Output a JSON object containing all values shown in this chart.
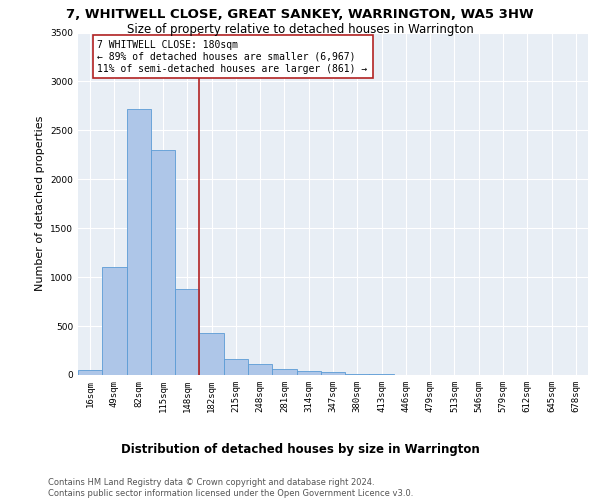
{
  "title": "7, WHITWELL CLOSE, GREAT SANKEY, WARRINGTON, WA5 3HW",
  "subtitle": "Size of property relative to detached houses in Warrington",
  "xlabel": "Distribution of detached houses by size in Warrington",
  "ylabel": "Number of detached properties",
  "categories": [
    "16sqm",
    "49sqm",
    "82sqm",
    "115sqm",
    "148sqm",
    "182sqm",
    "215sqm",
    "248sqm",
    "281sqm",
    "314sqm",
    "347sqm",
    "380sqm",
    "413sqm",
    "446sqm",
    "479sqm",
    "513sqm",
    "546sqm",
    "579sqm",
    "612sqm",
    "645sqm",
    "678sqm"
  ],
  "values": [
    50,
    1100,
    2720,
    2300,
    880,
    430,
    160,
    110,
    65,
    45,
    30,
    15,
    8,
    5,
    3,
    2,
    1,
    1,
    0,
    0,
    0
  ],
  "bar_color": "#aec6e8",
  "bar_edge_color": "#5b9bd5",
  "vline_position": 4.5,
  "vline_color": "#b22222",
  "annotation_line1": "7 WHITWELL CLOSE: 180sqm",
  "annotation_line2": "← 89% of detached houses are smaller (6,967)",
  "annotation_line3": "11% of semi-detached houses are larger (861) →",
  "annotation_box_color": "white",
  "annotation_box_edge_color": "#b22222",
  "ylim": [
    0,
    3500
  ],
  "yticks": [
    0,
    500,
    1000,
    1500,
    2000,
    2500,
    3000,
    3500
  ],
  "bg_color": "#e8eef5",
  "grid_color": "white",
  "footer": "Contains HM Land Registry data © Crown copyright and database right 2024.\nContains public sector information licensed under the Open Government Licence v3.0.",
  "title_fontsize": 9.5,
  "subtitle_fontsize": 8.5,
  "xlabel_fontsize": 8.5,
  "ylabel_fontsize": 8,
  "tick_fontsize": 6.5,
  "annot_fontsize": 7,
  "footer_fontsize": 6
}
